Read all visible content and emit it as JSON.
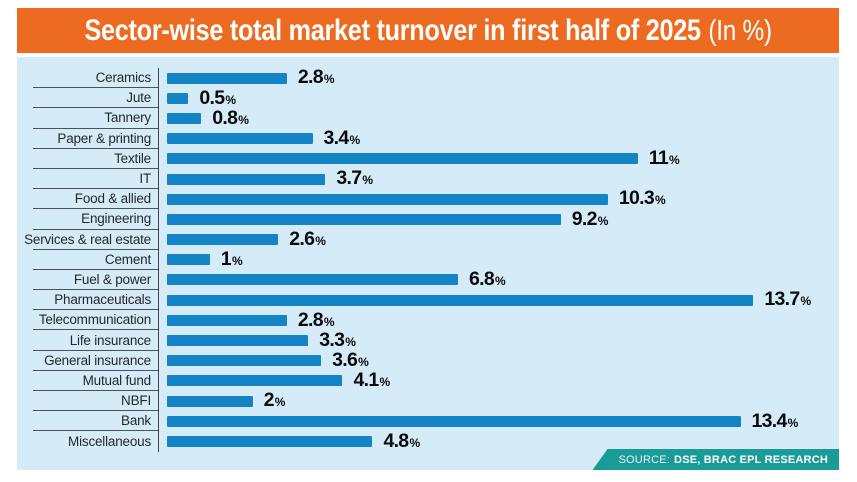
{
  "title": {
    "main": "Sector-wise total market turnover in first half of 2025",
    "suffix": "(In %)"
  },
  "source": {
    "prefix": "SOURCE:",
    "text": "DSE, BRAC EPL RESEARCH"
  },
  "colors": {
    "title_background": "#ed6b21",
    "chart_background": "#d5ecf8",
    "bar": "#1484c6",
    "source_background": "#199b99",
    "value_text": "#0a0b0c",
    "label_text": "#24282c"
  },
  "chart_data": {
    "type": "bar",
    "orientation": "horizontal",
    "title": "Sector-wise total market turnover in first half of 2025 (In %)",
    "unit": "%",
    "xlim": [
      0,
      14
    ],
    "grid": false,
    "legend": false,
    "categories": [
      "Ceramics",
      "Jute",
      "Tannery",
      "Paper & printing",
      "Textile",
      "IT",
      "Food & allied",
      "Engineering",
      "Services & real estate",
      "Cement",
      "Fuel & power",
      "Pharmaceuticals",
      "Telecommunication",
      "Life insurance",
      "General insurance",
      "Mutual fund",
      "NBFI",
      "Bank",
      "Miscellaneous"
    ],
    "values": [
      2.8,
      0.5,
      0.8,
      3.4,
      11,
      3.7,
      10.3,
      9.2,
      2.6,
      1,
      6.8,
      13.7,
      2.8,
      3.3,
      3.6,
      4.1,
      2,
      13.4,
      4.8
    ],
    "value_labels": [
      "2.8",
      "0.5",
      "0.8",
      "3.4",
      "11",
      "3.7",
      "10.3",
      "9.2",
      "2.6",
      "1",
      "6.8",
      "13.7",
      "2.8",
      "3.3",
      "3.6",
      "4.1",
      "2",
      "13.4",
      "4.8"
    ]
  }
}
